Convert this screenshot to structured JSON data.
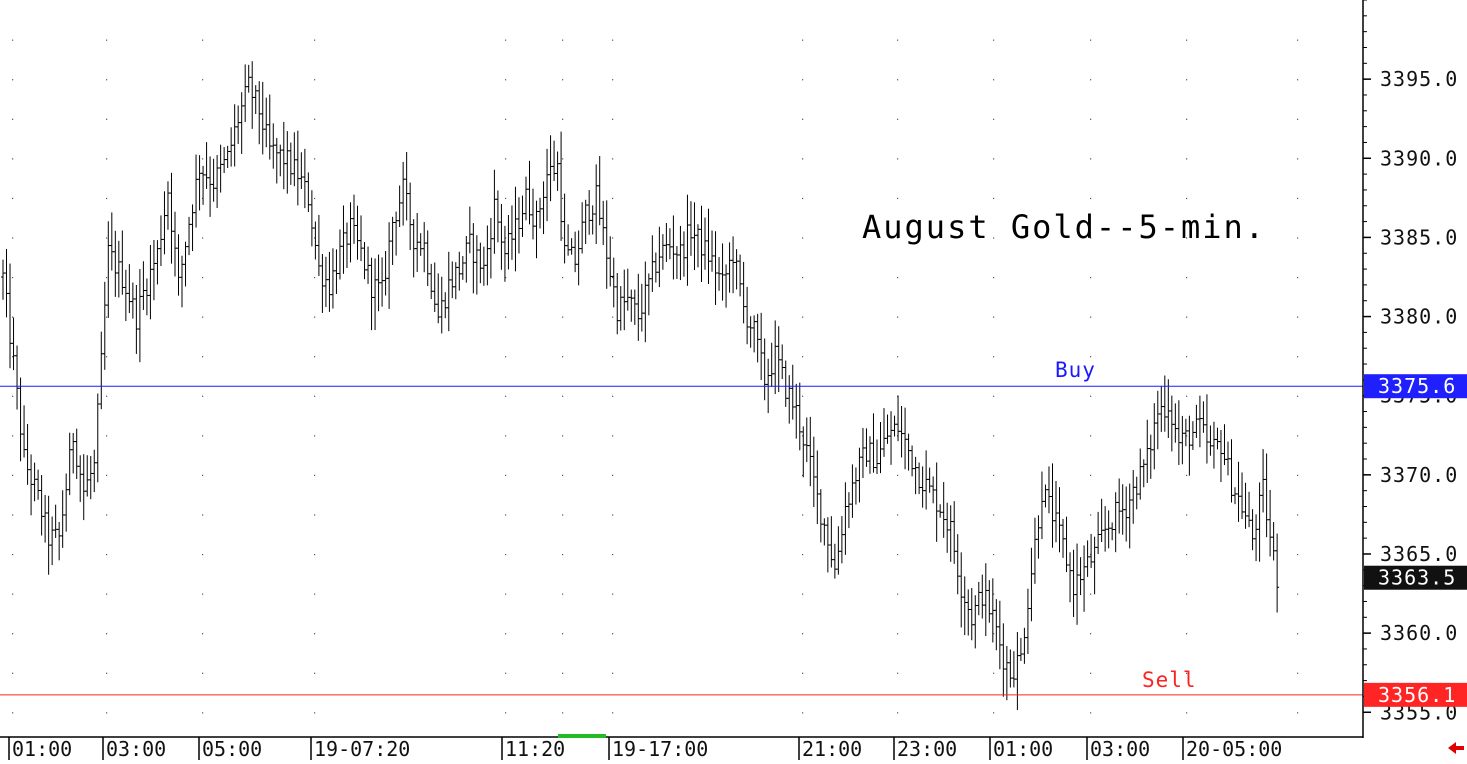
{
  "chart_data": {
    "type": "bar",
    "style": "ohlc",
    "title": "August Gold--5-min.",
    "ylim": [
      3353.5,
      3400.0
    ],
    "y_ticks": [
      "3395.0",
      "3390.0",
      "3385.0",
      "3380.0",
      "3375.0",
      "3370.0",
      "3365.0",
      "3360.0",
      "3355.0"
    ],
    "x_labels": [
      "01:00",
      "03:00",
      "05:00",
      "19-07:20",
      "11:20",
      "19-17:00",
      "21:00",
      "23:00",
      "01:00",
      "03:00",
      "20-05:00"
    ],
    "last_price": "3363.5",
    "buy": {
      "label": "Buy",
      "price": 3375.6,
      "price_text": "3375.6",
      "color": "#1a1aff"
    },
    "sell": {
      "label": "Sell",
      "price": 3356.1,
      "price_text": "3356.1",
      "color": "#ff2020"
    },
    "grid": "dotted",
    "anchors": [
      [
        0,
        3382.5
      ],
      [
        3,
        3377.0
      ],
      [
        6,
        3371.0
      ],
      [
        10,
        3368.5
      ],
      [
        13,
        3366.0
      ],
      [
        16,
        3366.0
      ],
      [
        20,
        3372.5
      ],
      [
        23,
        3369.0
      ],
      [
        26,
        3370.5
      ],
      [
        28,
        3377.0
      ],
      [
        30,
        3384.0
      ],
      [
        34,
        3382.5
      ],
      [
        38,
        3380.0
      ],
      [
        40,
        3381.5
      ],
      [
        44,
        3384.0
      ],
      [
        47,
        3388.0
      ],
      [
        50,
        3382.0
      ],
      [
        53,
        3386.0
      ],
      [
        56,
        3389.5
      ],
      [
        60,
        3388.5
      ],
      [
        64,
        3390.0
      ],
      [
        67,
        3392.5
      ],
      [
        70,
        3394.5
      ],
      [
        73,
        3393.0
      ],
      [
        76,
        3390.5
      ],
      [
        80,
        3390.0
      ],
      [
        84,
        3389.0
      ],
      [
        87,
        3387.5
      ],
      [
        90,
        3383.0
      ],
      [
        93,
        3382.0
      ],
      [
        96,
        3384.0
      ],
      [
        99,
        3385.5
      ],
      [
        102,
        3384.0
      ],
      [
        105,
        3382.0
      ],
      [
        108,
        3381.5
      ],
      [
        111,
        3386.0
      ],
      [
        114,
        3388.0
      ],
      [
        117,
        3385.0
      ],
      [
        120,
        3384.5
      ],
      [
        124,
        3380.0
      ],
      [
        127,
        3382.0
      ],
      [
        130,
        3383.0
      ],
      [
        133,
        3384.5
      ],
      [
        137,
        3383.0
      ],
      [
        140,
        3387.0
      ],
      [
        143,
        3384.0
      ],
      [
        146,
        3385.5
      ],
      [
        149,
        3387.5
      ],
      [
        152,
        3386.0
      ],
      [
        155,
        3389.0
      ],
      [
        158,
        3389.5
      ],
      [
        160,
        3384.0
      ],
      [
        163,
        3383.5
      ],
      [
        166,
        3386.5
      ],
      [
        169,
        3387.5
      ],
      [
        172,
        3384.0
      ],
      [
        175,
        3380.5
      ],
      [
        178,
        3381.0
      ],
      [
        181,
        3380.0
      ],
      [
        184,
        3382.0
      ],
      [
        187,
        3384.0
      ],
      [
        190,
        3384.5
      ],
      [
        193,
        3384.0
      ],
      [
        196,
        3385.5
      ],
      [
        199,
        3384.5
      ],
      [
        202,
        3383.5
      ],
      [
        205,
        3382.0
      ],
      [
        208,
        3384.0
      ],
      [
        211,
        3380.5
      ],
      [
        214,
        3379.0
      ],
      [
        217,
        3376.0
      ],
      [
        220,
        3377.5
      ],
      [
        223,
        3375.5
      ],
      [
        226,
        3374.0
      ],
      [
        229,
        3371.5
      ],
      [
        232,
        3368.5
      ],
      [
        235,
        3366.0
      ],
      [
        237,
        3364.0
      ],
      [
        240,
        3368.0
      ],
      [
        243,
        3370.0
      ],
      [
        246,
        3371.5
      ],
      [
        249,
        3371.0
      ],
      [
        252,
        3372.5
      ],
      [
        255,
        3373.0
      ],
      [
        258,
        3371.5
      ],
      [
        261,
        3370.0
      ],
      [
        264,
        3369.0
      ],
      [
        267,
        3368.0
      ],
      [
        270,
        3366.5
      ],
      [
        273,
        3363.0
      ],
      [
        276,
        3361.0
      ],
      [
        279,
        3362.5
      ],
      [
        282,
        3361.0
      ],
      [
        285,
        3358.5
      ],
      [
        287,
        3357.5
      ],
      [
        290,
        3358.5
      ],
      [
        293,
        3364.0
      ],
      [
        296,
        3369.0
      ],
      [
        299,
        3367.5
      ],
      [
        302,
        3365.5
      ],
      [
        305,
        3363.0
      ],
      [
        308,
        3364.0
      ],
      [
        311,
        3365.0
      ],
      [
        314,
        3366.5
      ],
      [
        317,
        3367.5
      ],
      [
        320,
        3368.0
      ],
      [
        323,
        3369.5
      ],
      [
        326,
        3371.0
      ],
      [
        329,
        3374.0
      ],
      [
        332,
        3374.5
      ],
      [
        335,
        3372.0
      ],
      [
        338,
        3372.5
      ],
      [
        341,
        3373.0
      ],
      [
        344,
        3371.5
      ],
      [
        347,
        3372.0
      ],
      [
        350,
        3369.5
      ],
      [
        353,
        3368.0
      ],
      [
        356,
        3366.0
      ],
      [
        359,
        3369.0
      ],
      [
        361,
        3366.0
      ],
      [
        363,
        3363.5
      ]
    ]
  }
}
